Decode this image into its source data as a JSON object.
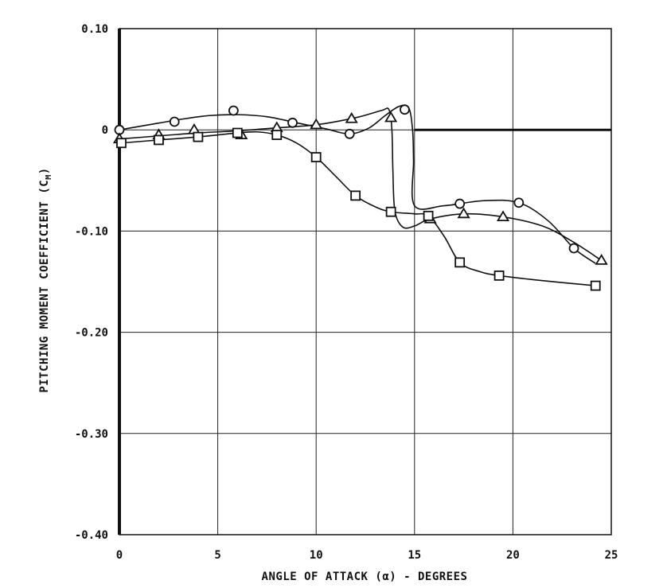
{
  "chart_data": {
    "type": "line",
    "title": "",
    "xlabel": "ANGLE OF ATTACK (α) - DEGREES",
    "ylabel": "PITCHING MOMENT COEFFICIENT (C",
    "ylabel_subscript": "M",
    "ylabel_close": ")",
    "xlim": [
      0,
      25
    ],
    "ylim": [
      -0.4,
      0.1
    ],
    "x_ticks": [
      0,
      5,
      10,
      15,
      20,
      25
    ],
    "x_tick_labels": [
      "0",
      "5",
      "10",
      "15",
      "20",
      "25"
    ],
    "y_ticks": [
      0.1,
      0,
      -0.1,
      -0.2,
      -0.3,
      -0.4
    ],
    "y_tick_labels": [
      "0.10",
      "0",
      "-0.10",
      "-0.20",
      "-0.30",
      "-0.40"
    ],
    "grid": true,
    "legend": "none",
    "series": [
      {
        "marker": "circle",
        "points": [
          [
            0,
            0.0
          ],
          [
            2.8,
            0.008
          ],
          [
            5.8,
            0.019
          ],
          [
            8.8,
            0.007
          ],
          [
            11.7,
            -0.004
          ],
          [
            14.5,
            0.02
          ],
          [
            17.3,
            -0.073
          ],
          [
            20.3,
            -0.072
          ],
          [
            23.1,
            -0.117
          ]
        ],
        "curve": [
          [
            0,
            0.0
          ],
          [
            1.5,
            0.005
          ],
          [
            3,
            0.01
          ],
          [
            4.5,
            0.014
          ],
          [
            6,
            0.015
          ],
          [
            7.5,
            0.013
          ],
          [
            9,
            0.007
          ],
          [
            10.5,
            0.001
          ],
          [
            11.7,
            -0.004
          ],
          [
            12.7,
            0.002
          ],
          [
            13.5,
            0.014
          ],
          [
            14.2,
            0.023
          ],
          [
            14.7,
            0.022
          ],
          [
            14.9,
            0.0
          ],
          [
            14.95,
            -0.03
          ],
          [
            15.0,
            -0.075
          ],
          [
            16.5,
            -0.075
          ],
          [
            18.5,
            -0.07
          ],
          [
            20.3,
            -0.072
          ],
          [
            21.8,
            -0.09
          ],
          [
            23.1,
            -0.117
          ],
          [
            24.2,
            -0.132
          ]
        ]
      },
      {
        "marker": "triangle",
        "points": [
          [
            0,
            -0.009
          ],
          [
            2,
            -0.005
          ],
          [
            3.8,
            0.0
          ],
          [
            6.2,
            -0.005
          ],
          [
            8,
            0.002
          ],
          [
            10,
            0.005
          ],
          [
            11.8,
            0.011
          ],
          [
            13.8,
            0.012
          ],
          [
            15.8,
            -0.088
          ],
          [
            17.5,
            -0.083
          ],
          [
            19.5,
            -0.086
          ],
          [
            24.5,
            -0.129
          ]
        ],
        "curve": [
          [
            0,
            -0.009
          ],
          [
            2,
            -0.006
          ],
          [
            4,
            -0.003
          ],
          [
            6,
            -0.001
          ],
          [
            8,
            0.002
          ],
          [
            10,
            0.005
          ],
          [
            12,
            0.012
          ],
          [
            13.3,
            0.019
          ],
          [
            13.7,
            0.02
          ],
          [
            13.85,
            0.0
          ],
          [
            13.9,
            -0.04
          ],
          [
            14.0,
            -0.08
          ],
          [
            14.4,
            -0.096
          ],
          [
            15.0,
            -0.095
          ],
          [
            15.8,
            -0.088
          ],
          [
            17.5,
            -0.083
          ],
          [
            19.5,
            -0.086
          ],
          [
            21.5,
            -0.095
          ],
          [
            23.0,
            -0.11
          ],
          [
            24.5,
            -0.129
          ]
        ]
      },
      {
        "marker": "square",
        "points": [
          [
            0.1,
            -0.013
          ],
          [
            2,
            -0.01
          ],
          [
            4,
            -0.007
          ],
          [
            6,
            -0.003
          ],
          [
            8,
            -0.005
          ],
          [
            10,
            -0.027
          ],
          [
            12,
            -0.065
          ],
          [
            13.8,
            -0.081
          ],
          [
            15.7,
            -0.085
          ],
          [
            17.3,
            -0.131
          ],
          [
            19.3,
            -0.144
          ],
          [
            24.2,
            -0.154
          ]
        ],
        "curve": [
          [
            0.1,
            -0.013
          ],
          [
            2,
            -0.01
          ],
          [
            4,
            -0.007
          ],
          [
            6,
            -0.003
          ],
          [
            7,
            -0.002
          ],
          [
            8,
            -0.005
          ],
          [
            9,
            -0.013
          ],
          [
            10,
            -0.027
          ],
          [
            11,
            -0.046
          ],
          [
            12,
            -0.065
          ],
          [
            13,
            -0.076
          ],
          [
            13.8,
            -0.081
          ],
          [
            15,
            -0.083
          ],
          [
            15.7,
            -0.085
          ],
          [
            16.5,
            -0.105
          ],
          [
            17.3,
            -0.131
          ],
          [
            18.3,
            -0.14
          ],
          [
            19.3,
            -0.144
          ],
          [
            21.5,
            -0.149
          ],
          [
            24.2,
            -0.154
          ]
        ]
      }
    ],
    "reference_line": {
      "y": 0,
      "from_x": 15,
      "to_x": 25
    }
  }
}
